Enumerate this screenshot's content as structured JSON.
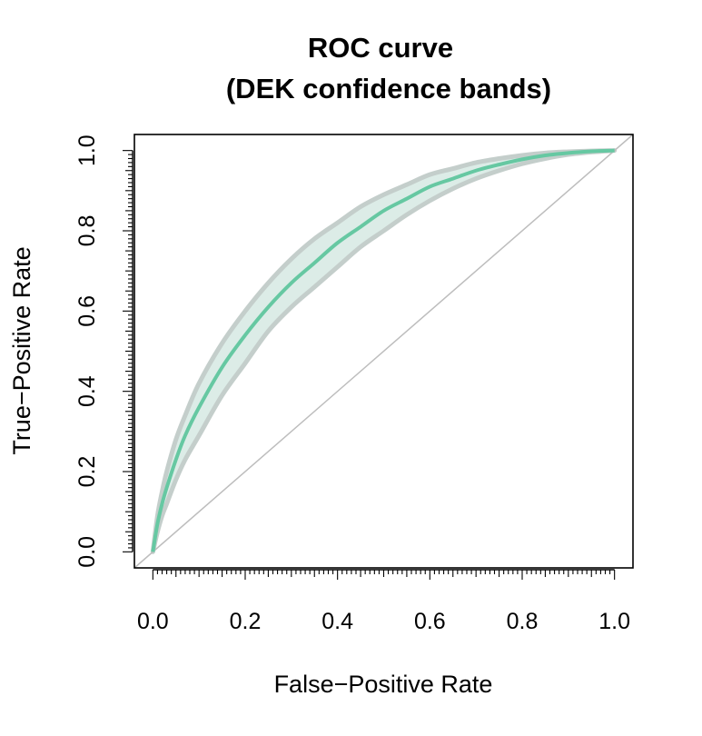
{
  "chart_data": {
    "type": "line",
    "title": "ROC curve",
    "subtitle": "(DEK confidence bands)",
    "xlabel": "False−Positive Rate",
    "ylabel": "True−Positive Rate",
    "xlim": [
      -0.04,
      1.04
    ],
    "ylim": [
      -0.04,
      1.04
    ],
    "x_ticks": [
      "0.0",
      "0.2",
      "0.4",
      "0.6",
      "0.8",
      "1.0"
    ],
    "y_ticks": [
      "0.0",
      "0.2",
      "0.4",
      "0.6",
      "0.8",
      "1.0"
    ],
    "x_tick_values": [
      0,
      0.2,
      0.4,
      0.6,
      0.8,
      1.0
    ],
    "y_tick_values": [
      0,
      0.2,
      0.4,
      0.6,
      0.8,
      1.0
    ],
    "minor_ticks_step": 0.01,
    "grid": false,
    "legend": "none",
    "colors": {
      "roc": "#66c8a2",
      "band_fill": "#dcece7",
      "band_edge": "#c4cecb",
      "diagonal": "#bdbdbd"
    },
    "series": [
      {
        "x": [
          0,
          0.01,
          0.02,
          0.03,
          0.05,
          0.07,
          0.1,
          0.15,
          0.2,
          0.25,
          0.3,
          0.35,
          0.4,
          0.45,
          0.5,
          0.55,
          0.6,
          0.65,
          0.7,
          0.75,
          0.8,
          0.85,
          0.9,
          0.95,
          1.0
        ],
        "y": [
          0,
          0.07,
          0.12,
          0.16,
          0.23,
          0.29,
          0.36,
          0.46,
          0.54,
          0.61,
          0.67,
          0.72,
          0.77,
          0.81,
          0.85,
          0.88,
          0.91,
          0.93,
          0.95,
          0.965,
          0.978,
          0.988,
          0.994,
          0.998,
          1.0
        ]
      },
      {
        "x": [
          0,
          0.01,
          0.02,
          0.03,
          0.05,
          0.07,
          0.1,
          0.15,
          0.2,
          0.25,
          0.3,
          0.35,
          0.4,
          0.45,
          0.5,
          0.55,
          0.6,
          0.65,
          0.7,
          0.75,
          0.8,
          0.85,
          0.9,
          0.95,
          1.0
        ],
        "y": [
          0,
          0.09,
          0.15,
          0.2,
          0.28,
          0.34,
          0.42,
          0.52,
          0.6,
          0.67,
          0.73,
          0.78,
          0.82,
          0.86,
          0.89,
          0.915,
          0.94,
          0.955,
          0.97,
          0.98,
          0.988,
          0.994,
          0.997,
          0.999,
          1.0
        ]
      },
      {
        "x": [
          0,
          0.01,
          0.02,
          0.03,
          0.05,
          0.07,
          0.1,
          0.15,
          0.2,
          0.25,
          0.3,
          0.35,
          0.4,
          0.45,
          0.5,
          0.55,
          0.6,
          0.65,
          0.7,
          0.75,
          0.8,
          0.85,
          0.9,
          0.95,
          1.0
        ],
        "y": [
          0,
          0.05,
          0.09,
          0.12,
          0.18,
          0.23,
          0.29,
          0.39,
          0.47,
          0.55,
          0.61,
          0.66,
          0.71,
          0.76,
          0.8,
          0.84,
          0.875,
          0.905,
          0.93,
          0.95,
          0.967,
          0.98,
          0.99,
          0.996,
          1.0
        ]
      }
    ]
  }
}
